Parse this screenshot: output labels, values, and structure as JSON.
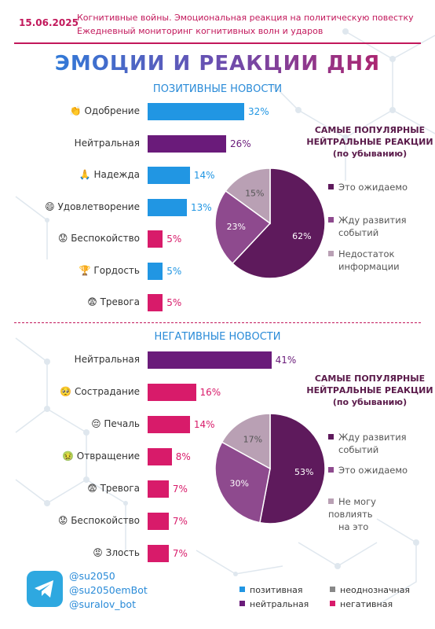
{
  "header": {
    "date": "15.06.2025",
    "subtitle_line1": "Когнитивные войны. Эмоциональная реакция на политическую повестку",
    "subtitle_line2": "Ежедневный мониторинг когнитивных волн и ударов",
    "title": "ЭМОЦИИ И РЕАКЦИИ ДНЯ"
  },
  "colors": {
    "positive": "#2196e3",
    "neutral": "#6a1b7a",
    "ambiguous": "#888888",
    "negative": "#d81b6a",
    "pie_dark": "#5e1a5c",
    "pie_mid": "#8e4a8e",
    "pie_light": "#b9a0b4"
  },
  "chart_data": [
    {
      "type": "bar",
      "title": "ПОЗИТИВНЫЕ НОВОСТИ",
      "categories": [
        "Одобрение",
        "Нейтральная",
        "Надежда",
        "Удовлетворение",
        "Беспокойство",
        "Гордость",
        "Тревога"
      ],
      "icons": [
        "👏",
        "",
        "🙏",
        "😄",
        "😟",
        "🏆",
        "😨"
      ],
      "values": [
        32,
        26,
        14,
        13,
        5,
        5,
        5
      ],
      "labels": [
        "32%",
        "26%",
        "14%",
        "13%",
        "5%",
        "5%",
        "5%"
      ],
      "classes": [
        "positive",
        "neutral",
        "positive",
        "positive",
        "negative",
        "positive",
        "negative"
      ]
    },
    {
      "type": "pie",
      "title_lines": [
        "САМЫЕ ПОПУЛЯРНЫЕ",
        "НЕЙТРАЛЬНЫЕ РЕАКЦИИ",
        "(по убыванию)"
      ],
      "slices": [
        {
          "name": "Это ожидаемо",
          "value": 62,
          "label": "62%",
          "shade": "dark"
        },
        {
          "name": "Жду развития событий",
          "value": 23,
          "label": "23%",
          "shade": "mid"
        },
        {
          "name": "Недостаток информации",
          "value": 15,
          "label": "15%",
          "shade": "light"
        }
      ],
      "legend_lines": [
        [
          "Это ожидаемо"
        ],
        [
          "Жду развития",
          "событий"
        ],
        [
          "Недостаток",
          "информации"
        ]
      ]
    },
    {
      "type": "bar",
      "title": "НЕГАТИВНЫЕ НОВОСТИ",
      "categories": [
        "Нейтральная",
        "Сострадание",
        "Печаль",
        "Отвращение",
        "Тревога",
        "Беспокойство",
        "Злость"
      ],
      "icons": [
        "",
        "🥺",
        "😔",
        "🤢",
        "😨",
        "😟",
        "😡"
      ],
      "values": [
        41,
        16,
        14,
        8,
        7,
        7,
        7
      ],
      "labels": [
        "41%",
        "16%",
        "14%",
        "8%",
        "7%",
        "7%",
        "7%"
      ],
      "classes": [
        "neutral",
        "negative",
        "negative",
        "negative",
        "negative",
        "negative",
        "negative"
      ]
    },
    {
      "type": "pie",
      "title_lines": [
        "САМЫЕ ПОПУЛЯРНЫЕ",
        "НЕЙТРАЛЬНЫЕ РЕАКЦИИ",
        "(по убыванию)"
      ],
      "slices": [
        {
          "name": "Жду развития событий",
          "value": 53,
          "label": "53%",
          "shade": "dark"
        },
        {
          "name": "Это ожидаемо",
          "value": 30,
          "label": "30%",
          "shade": "mid"
        },
        {
          "name": "Не могу повлиять на это",
          "value": 17,
          "label": "17%",
          "shade": "light"
        }
      ],
      "legend_lines": [
        [
          "Жду развития",
          "событий"
        ],
        [
          "Это ожидаемо"
        ],
        [
          "Не могу повлиять",
          "на это"
        ]
      ]
    }
  ],
  "footer": {
    "handles": [
      "@su2050",
      "@su2050emBot",
      "@suralov_bot"
    ],
    "legend": [
      {
        "label": "позитивная",
        "class": "positive"
      },
      {
        "label": "неоднозначная",
        "class": "ambiguous"
      },
      {
        "label": "нейтральная",
        "class": "neutral"
      },
      {
        "label": "негативная",
        "class": "negative"
      }
    ]
  }
}
